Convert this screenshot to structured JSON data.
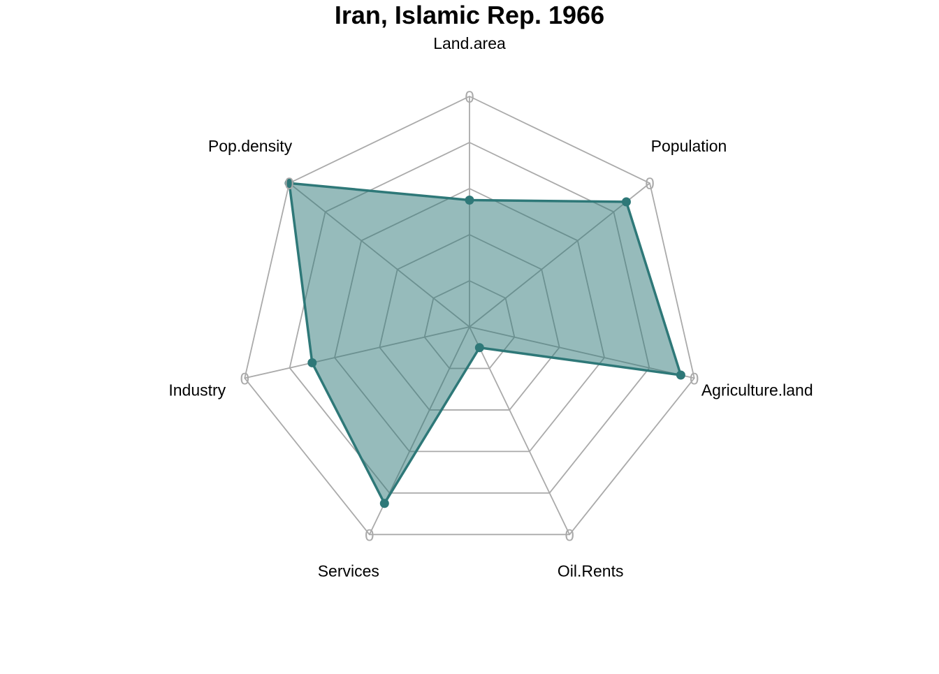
{
  "chart_data": {
    "type": "radar",
    "title": "Iran, Islamic Rep. 1966",
    "axes": [
      "Land.area",
      "Population",
      "Agriculture.land",
      "Oil.Rents",
      "Services",
      "Industry",
      "Pop.density"
    ],
    "series": [
      {
        "values": [
          0.55,
          0.87,
          0.94,
          0.1,
          0.85,
          0.7,
          1.0
        ]
      }
    ],
    "rlim": [
      0,
      1
    ],
    "grid_levels": 5,
    "ring_label": "0",
    "colors": {
      "series_line": "#2e7878",
      "series_fill": "#2e7878",
      "grid": "#aaaaaa",
      "inner_grid": "#7a9a9a"
    },
    "grid": true,
    "legend": "none"
  }
}
